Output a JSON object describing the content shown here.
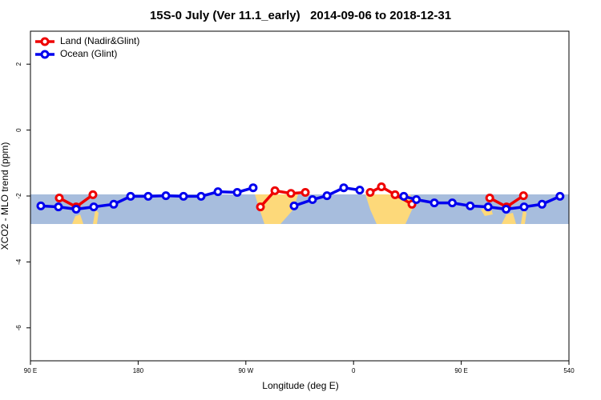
{
  "chart_data": {
    "type": "line",
    "title": "15S-0 July (Ver 11.1_early)   2014-09-06 to 2018-12-31",
    "x_label": "Longitude (deg E)",
    "y_label": "XCO2 - MLO trend (ppm)",
    "xlim": [
      90,
      540
    ],
    "xticks": [
      {
        "value": 90,
        "label": "90 E"
      },
      180,
      {
        "value": 270,
        "label": "90 W"
      },
      {
        "value": 360,
        "label": "0"
      },
      {
        "value": 450,
        "label": "90 E"
      },
      540
    ],
    "ylim": [
      -7,
      3
    ],
    "yticks": [
      -6,
      -4,
      -2,
      0,
      2
    ],
    "legend": "top-left",
    "series": [
      {
        "name": "Land (Nadir&Glint)",
        "color": "#ee0000",
        "x": [
          114.1,
          128.2,
          142.2,
          null,
          282.2,
          294.3,
          307.7,
          319.7,
          null,
          373.9,
          383.3,
          394.7,
          408.8,
          null,
          473.8,
          487.9,
          502.0
        ],
        "values": [
          -2.06,
          -2.33,
          -1.96,
          null,
          -2.33,
          -1.84,
          -1.92,
          -1.89,
          null,
          -1.89,
          -1.72,
          -1.96,
          -2.25,
          null,
          -2.06,
          -2.33,
          -1.99
        ]
      },
      {
        "name": "Ocean (Glint)",
        "color": "#0000ee",
        "x": [
          98.7,
          113.4,
          128.2,
          142.9,
          159.6,
          173.7,
          188.4,
          203.2,
          217.9,
          232.6,
          246.7,
          262.8,
          276.1,
          null,
          310.3,
          325.7,
          337.8,
          351.8,
          365.2,
          null,
          402.0,
          412.5,
          427.5,
          442.5,
          457.5,
          472.5,
          487.5,
          502.5,
          517.5,
          532.5
        ],
        "values": [
          -2.3,
          -2.33,
          -2.4,
          -2.33,
          -2.25,
          -2.01,
          -2.01,
          -1.99,
          -2.01,
          -2.01,
          -1.87,
          -1.89,
          -1.75,
          null,
          -2.3,
          -2.11,
          -1.99,
          -1.75,
          -1.82,
          null,
          -2.01,
          -2.11,
          -2.21,
          -2.21,
          -2.3,
          -2.33,
          -2.4,
          -2.33,
          -2.25,
          -2.01
        ]
      }
    ]
  }
}
